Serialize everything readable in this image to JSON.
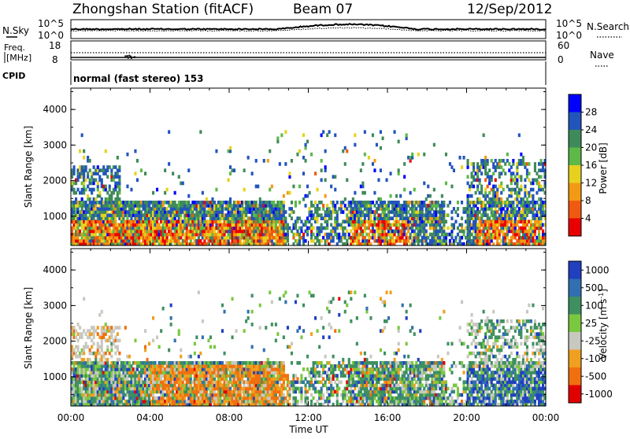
{
  "header": {
    "title": "Zhongshan Station (fitACF)",
    "beam": "Beam 07",
    "date": "12/Sep/2012"
  },
  "top_panels": {
    "nsky_label": "N.Sky",
    "nsky_ticks": [
      "10^5",
      "10^0"
    ],
    "nsearch_ticks": [
      "10^5",
      "10^0"
    ],
    "nsearch_label": "N.Search",
    "freq_label_1": "Freq.",
    "freq_label_2": "[MHz]",
    "freq_ticks": [
      "18",
      "8"
    ],
    "nave_ticks": [
      "60",
      "0"
    ],
    "nave_label": "Nave",
    "cpid_label": "CPID",
    "cpid_text": "normal (fast stereo) 153"
  },
  "colors": {
    "power_scale": [
      "#0000ff",
      "#2255bb",
      "#3f8a5a",
      "#5cb848",
      "#e6d21e",
      "#f29a14",
      "#f05a10",
      "#e80000"
    ],
    "velocity_scale": [
      "#2040c0",
      "#3070b0",
      "#3e9060",
      "#7ac840",
      "#c8c8c0",
      "#f0a020",
      "#f07010",
      "#e00000"
    ]
  },
  "chart_data": [
    {
      "type": "heatmap",
      "name": "power",
      "ylabel": "Slant Range [km]",
      "yticks": [
        "4000",
        "3000",
        "2000",
        "1000"
      ],
      "ylim": [
        180,
        4600
      ],
      "xlim_hours": [
        0,
        24
      ],
      "colorbar_label": "Power [dB]",
      "colorbar_ticks": [
        "28",
        "24",
        "20",
        "16",
        "12",
        "8",
        "4"
      ],
      "colorbar_range": [
        0,
        32
      ]
    },
    {
      "type": "heatmap",
      "name": "velocity",
      "ylabel": "Slant Range [km]",
      "yticks": [
        "4000",
        "3000",
        "2000",
        "1000"
      ],
      "ylim": [
        180,
        4600
      ],
      "xlim_hours": [
        0,
        24
      ],
      "colorbar_label": "Velocity [m s",
      "colorbar_label_sup": "-1",
      "colorbar_label_end": "]",
      "colorbar_ticks": [
        "1000",
        "500",
        "100",
        "25",
        "-25",
        "-100",
        "-500",
        "-1000"
      ]
    }
  ],
  "xaxis": {
    "ticks": [
      "00:00",
      "04:00",
      "08:00",
      "12:00",
      "16:00",
      "20:00",
      "00:00"
    ],
    "label": "Time UT"
  }
}
